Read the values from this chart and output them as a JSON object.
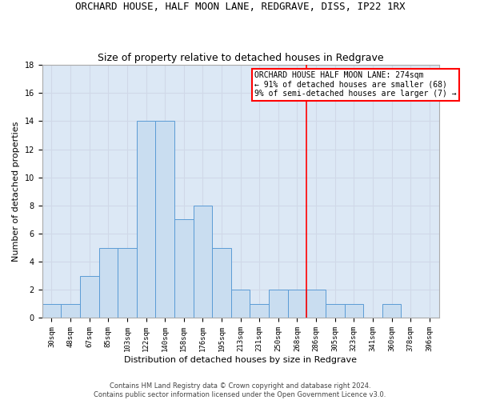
{
  "title": "ORCHARD HOUSE, HALF MOON LANE, REDGRAVE, DISS, IP22 1RX",
  "subtitle": "Size of property relative to detached houses in Redgrave",
  "xlabel": "Distribution of detached houses by size in Redgrave",
  "ylabel": "Number of detached properties",
  "bin_labels": [
    "30sqm",
    "48sqm",
    "67sqm",
    "85sqm",
    "103sqm",
    "122sqm",
    "140sqm",
    "158sqm",
    "176sqm",
    "195sqm",
    "213sqm",
    "231sqm",
    "250sqm",
    "268sqm",
    "286sqm",
    "305sqm",
    "323sqm",
    "341sqm",
    "360sqm",
    "378sqm",
    "396sqm"
  ],
  "bar_heights": [
    1,
    1,
    3,
    5,
    5,
    14,
    14,
    7,
    8,
    5,
    2,
    1,
    2,
    2,
    2,
    1,
    1,
    0,
    1,
    0,
    0
  ],
  "bar_color": "#c9ddf0",
  "bar_edge_color": "#5b9bd5",
  "grid_color": "#d0d8e8",
  "background_color": "#dce8f5",
  "vline_x": 13.5,
  "vline_color": "red",
  "annotation_text": "ORCHARD HOUSE HALF MOON LANE: 274sqm\n← 91% of detached houses are smaller (68)\n9% of semi-detached houses are larger (7) →",
  "footnote": "Contains HM Land Registry data © Crown copyright and database right 2024.\nContains public sector information licensed under the Open Government Licence v3.0.",
  "ylim": [
    0,
    18
  ],
  "yticks": [
    0,
    2,
    4,
    6,
    8,
    10,
    12,
    14,
    16,
    18
  ],
  "figsize": [
    6.0,
    5.0
  ],
  "dpi": 100,
  "title_fontsize": 9,
  "subtitle_fontsize": 9,
  "tick_fontsize": 6.5,
  "ylabel_fontsize": 8,
  "xlabel_fontsize": 8,
  "annotation_fontsize": 7,
  "footnote_fontsize": 6
}
